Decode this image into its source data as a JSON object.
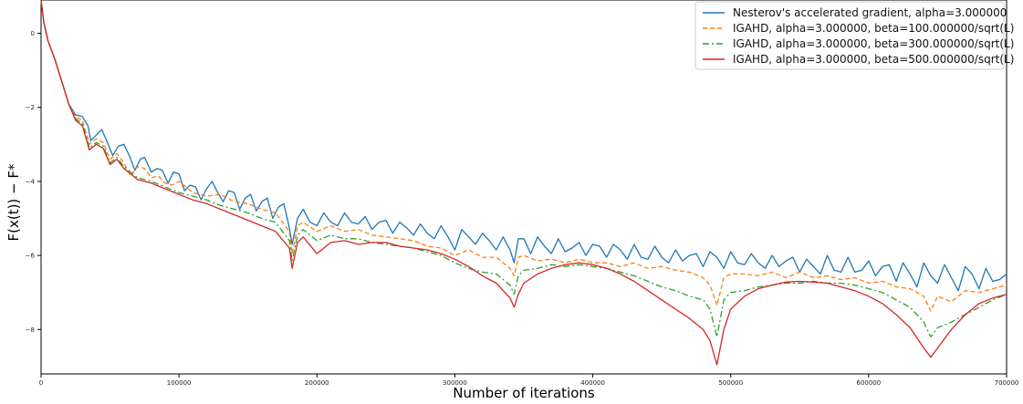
{
  "chart_data": {
    "type": "line",
    "title": "",
    "xlabel": "Number of iterations",
    "ylabel": "F(x(t)) − F*",
    "xlim": [
      0,
      700000
    ],
    "ylim": [
      -9.2,
      0.9
    ],
    "xticks": [
      0,
      100000,
      200000,
      300000,
      400000,
      500000,
      600000,
      700000
    ],
    "xtick_labels": [
      "0",
      "100000",
      "200000",
      "300000",
      "400000",
      "500000",
      "600000",
      "700000"
    ],
    "yticks": [
      0,
      -2,
      -4,
      -6,
      -8
    ],
    "ytick_labels": [
      "0",
      "−2",
      "−4",
      "−6",
      "−8"
    ],
    "grid": false,
    "legend_position": "top-right",
    "series": [
      {
        "name": "Nesterov's accelerated gradient, alpha=3.000000",
        "color": "#1f77b4",
        "style": "solid",
        "x": [
          0,
          2000,
          5000,
          10000,
          15000,
          20000,
          25000,
          30000,
          34000,
          36000,
          40000,
          44000,
          47000,
          52000,
          56000,
          60000,
          64000,
          68000,
          72000,
          75000,
          80000,
          84000,
          88000,
          92000,
          96000,
          100000,
          104000,
          108000,
          112000,
          116000,
          120000,
          124000,
          128000,
          132000,
          136000,
          140000,
          144000,
          148000,
          152000,
          156000,
          160000,
          164000,
          168000,
          172000,
          176000,
          180000,
          182000,
          186000,
          190000,
          195000,
          200000,
          205000,
          210000,
          215000,
          220000,
          225000,
          230000,
          235000,
          240000,
          245000,
          250000,
          255000,
          260000,
          265000,
          270000,
          275000,
          280000,
          285000,
          290000,
          295000,
          300000,
          305000,
          310000,
          315000,
          320000,
          325000,
          330000,
          335000,
          340000,
          343000,
          346000,
          350000,
          355000,
          360000,
          365000,
          370000,
          375000,
          380000,
          385000,
          390000,
          395000,
          400000,
          405000,
          410000,
          415000,
          420000,
          425000,
          430000,
          435000,
          440000,
          445000,
          450000,
          455000,
          460000,
          465000,
          470000,
          475000,
          480000,
          485000,
          490000,
          495000,
          500000,
          505000,
          510000,
          515000,
          520000,
          525000,
          530000,
          535000,
          540000,
          545000,
          550000,
          555000,
          560000,
          565000,
          570000,
          575000,
          580000,
          585000,
          590000,
          595000,
          600000,
          605000,
          610000,
          615000,
          620000,
          625000,
          630000,
          635000,
          640000,
          645000,
          650000,
          655000,
          660000,
          665000,
          670000,
          675000,
          680000,
          685000,
          690000,
          695000,
          700000
        ],
        "y": [
          0.9,
          0.3,
          -0.2,
          -0.7,
          -1.3,
          -1.9,
          -2.2,
          -2.25,
          -2.5,
          -2.9,
          -2.75,
          -2.6,
          -2.85,
          -3.3,
          -3.05,
          -3.0,
          -3.3,
          -3.7,
          -3.4,
          -3.35,
          -3.75,
          -3.65,
          -3.7,
          -4.05,
          -3.75,
          -3.8,
          -4.25,
          -4.1,
          -4.15,
          -4.5,
          -4.2,
          -4.0,
          -4.3,
          -4.55,
          -4.25,
          -4.3,
          -4.75,
          -4.45,
          -4.35,
          -4.8,
          -4.55,
          -4.45,
          -5.0,
          -4.7,
          -4.6,
          -5.25,
          -5.7,
          -5.0,
          -4.75,
          -5.1,
          -5.2,
          -4.85,
          -5.1,
          -5.2,
          -4.85,
          -5.1,
          -5.15,
          -4.95,
          -5.3,
          -5.1,
          -5.05,
          -5.4,
          -5.1,
          -5.25,
          -5.45,
          -5.15,
          -5.4,
          -5.55,
          -5.2,
          -5.5,
          -5.85,
          -5.3,
          -5.5,
          -5.7,
          -5.4,
          -5.6,
          -5.85,
          -5.5,
          -5.85,
          -6.2,
          -5.55,
          -5.55,
          -5.95,
          -5.5,
          -5.75,
          -5.95,
          -5.55,
          -5.9,
          -5.8,
          -5.65,
          -6.0,
          -5.7,
          -5.75,
          -6.05,
          -5.7,
          -5.85,
          -6.1,
          -5.7,
          -6.05,
          -6.1,
          -5.75,
          -6.05,
          -6.2,
          -5.85,
          -6.15,
          -6.0,
          -5.95,
          -6.3,
          -5.9,
          -6.05,
          -6.35,
          -5.9,
          -6.2,
          -6.25,
          -5.95,
          -6.2,
          -6.35,
          -6.0,
          -6.3,
          -6.15,
          -6.05,
          -6.45,
          -6.1,
          -6.3,
          -6.5,
          -6.0,
          -6.4,
          -6.45,
          -6.05,
          -6.45,
          -6.4,
          -6.15,
          -6.55,
          -6.3,
          -6.25,
          -6.7,
          -6.2,
          -6.5,
          -6.85,
          -6.2,
          -6.55,
          -6.75,
          -6.25,
          -6.6,
          -6.95,
          -6.3,
          -6.5,
          -6.9,
          -6.35,
          -6.7,
          -6.65,
          -6.5
        ],
        "note": "oscillating decay"
      },
      {
        "name": "IGAHD, alpha=3.000000, beta=100.000000/sqrt(L)",
        "color": "#ff7f0e",
        "style": "dashed",
        "x": [
          0,
          2000,
          5000,
          10000,
          15000,
          20000,
          25000,
          30000,
          35000,
          40000,
          45000,
          50000,
          55000,
          60000,
          65000,
          70000,
          75000,
          80000,
          85000,
          90000,
          95000,
          100000,
          110000,
          120000,
          130000,
          140000,
          150000,
          160000,
          170000,
          180000,
          182000,
          186000,
          190000,
          200000,
          210000,
          220000,
          230000,
          240000,
          250000,
          260000,
          270000,
          280000,
          290000,
          300000,
          310000,
          320000,
          330000,
          340000,
          343000,
          346000,
          350000,
          360000,
          370000,
          380000,
          390000,
          400000,
          410000,
          420000,
          430000,
          440000,
          450000,
          460000,
          470000,
          480000,
          485000,
          490000,
          495000,
          500000,
          510000,
          520000,
          530000,
          540000,
          550000,
          560000,
          570000,
          580000,
          590000,
          600000,
          610000,
          620000,
          630000,
          640000,
          645000,
          650000,
          660000,
          670000,
          680000,
          690000,
          700000
        ],
        "y": [
          0.9,
          0.3,
          -0.2,
          -0.7,
          -1.3,
          -1.9,
          -2.25,
          -2.35,
          -3.0,
          -2.85,
          -2.95,
          -3.4,
          -3.25,
          -3.5,
          -3.85,
          -3.6,
          -3.65,
          -3.9,
          -3.85,
          -4.05,
          -4.1,
          -4.0,
          -4.3,
          -4.4,
          -4.35,
          -4.55,
          -4.6,
          -4.75,
          -4.85,
          -5.35,
          -5.95,
          -5.2,
          -5.1,
          -5.35,
          -5.2,
          -5.35,
          -5.3,
          -5.45,
          -5.5,
          -5.55,
          -5.6,
          -5.75,
          -5.8,
          -6.0,
          -5.85,
          -6.05,
          -6.05,
          -6.35,
          -6.55,
          -6.05,
          -6.0,
          -6.15,
          -6.1,
          -6.2,
          -6.1,
          -6.2,
          -6.2,
          -6.3,
          -6.2,
          -6.35,
          -6.3,
          -6.4,
          -6.45,
          -6.6,
          -6.8,
          -7.35,
          -6.6,
          -6.5,
          -6.5,
          -6.55,
          -6.45,
          -6.6,
          -6.45,
          -6.6,
          -6.55,
          -6.65,
          -6.6,
          -6.75,
          -6.7,
          -6.85,
          -6.9,
          -7.1,
          -7.5,
          -7.1,
          -7.25,
          -6.95,
          -7.0,
          -6.9,
          -6.8
        ]
      },
      {
        "name": "IGAHD, alpha=3.000000, beta=300.000000/sqrt(L)",
        "color": "#2ca02c",
        "style": "dashdot",
        "x": [
          0,
          2000,
          5000,
          10000,
          15000,
          20000,
          25000,
          30000,
          35000,
          40000,
          45000,
          50000,
          55000,
          60000,
          70000,
          80000,
          90000,
          100000,
          110000,
          120000,
          130000,
          140000,
          150000,
          160000,
          170000,
          180000,
          182000,
          186000,
          190000,
          200000,
          210000,
          220000,
          230000,
          240000,
          250000,
          260000,
          270000,
          280000,
          290000,
          300000,
          310000,
          320000,
          330000,
          340000,
          343000,
          346000,
          350000,
          360000,
          370000,
          380000,
          390000,
          400000,
          410000,
          420000,
          430000,
          440000,
          450000,
          460000,
          470000,
          480000,
          485000,
          490000,
          495000,
          500000,
          510000,
          520000,
          530000,
          540000,
          550000,
          560000,
          570000,
          580000,
          590000,
          600000,
          610000,
          620000,
          630000,
          640000,
          645000,
          650000,
          660000,
          670000,
          680000,
          690000,
          700000
        ],
        "y": [
          0.9,
          0.3,
          -0.2,
          -0.7,
          -1.3,
          -1.9,
          -2.3,
          -2.45,
          -3.1,
          -2.95,
          -3.05,
          -3.5,
          -3.35,
          -3.6,
          -3.9,
          -4.0,
          -4.15,
          -4.3,
          -4.4,
          -4.5,
          -4.65,
          -4.75,
          -4.85,
          -5.0,
          -5.1,
          -5.6,
          -6.15,
          -5.45,
          -5.3,
          -5.6,
          -5.45,
          -5.55,
          -5.55,
          -5.65,
          -5.7,
          -5.75,
          -5.8,
          -5.9,
          -6.0,
          -6.2,
          -6.35,
          -6.45,
          -6.5,
          -6.8,
          -7.05,
          -6.55,
          -6.4,
          -6.35,
          -6.25,
          -6.3,
          -6.25,
          -6.3,
          -6.35,
          -6.45,
          -6.55,
          -6.7,
          -6.85,
          -6.95,
          -7.1,
          -7.2,
          -7.45,
          -8.2,
          -7.2,
          -7.0,
          -6.95,
          -6.85,
          -6.8,
          -6.75,
          -6.75,
          -6.7,
          -6.75,
          -6.75,
          -6.8,
          -6.9,
          -7.0,
          -7.2,
          -7.4,
          -7.8,
          -8.2,
          -7.95,
          -7.8,
          -7.6,
          -7.4,
          -7.2,
          -7.05
        ]
      },
      {
        "name": "IGAHD, alpha=3.000000, beta=500.000000/sqrt(L)",
        "color": "#d62728",
        "style": "solid",
        "x": [
          0,
          2000,
          5000,
          10000,
          15000,
          20000,
          25000,
          30000,
          35000,
          40000,
          45000,
          50000,
          55000,
          60000,
          70000,
          80000,
          90000,
          100000,
          110000,
          120000,
          130000,
          140000,
          150000,
          160000,
          170000,
          180000,
          182000,
          186000,
          190000,
          200000,
          210000,
          220000,
          230000,
          240000,
          250000,
          260000,
          270000,
          280000,
          290000,
          300000,
          310000,
          320000,
          330000,
          340000,
          343000,
          346000,
          350000,
          360000,
          370000,
          380000,
          390000,
          400000,
          410000,
          420000,
          430000,
          440000,
          450000,
          460000,
          470000,
          480000,
          485000,
          490000,
          495000,
          500000,
          510000,
          520000,
          530000,
          540000,
          550000,
          560000,
          570000,
          580000,
          590000,
          600000,
          610000,
          620000,
          630000,
          640000,
          645000,
          650000,
          660000,
          670000,
          680000,
          690000,
          700000
        ],
        "y": [
          0.9,
          0.3,
          -0.2,
          -0.7,
          -1.3,
          -1.9,
          -2.35,
          -2.5,
          -3.15,
          -3.0,
          -3.1,
          -3.55,
          -3.4,
          -3.65,
          -3.95,
          -4.05,
          -4.2,
          -4.35,
          -4.5,
          -4.6,
          -4.75,
          -4.9,
          -5.05,
          -5.2,
          -5.35,
          -5.8,
          -6.35,
          -5.65,
          -5.5,
          -5.95,
          -5.65,
          -5.6,
          -5.7,
          -5.65,
          -5.65,
          -5.75,
          -5.8,
          -5.85,
          -5.95,
          -6.1,
          -6.3,
          -6.55,
          -6.75,
          -7.15,
          -7.4,
          -7.05,
          -6.75,
          -6.5,
          -6.35,
          -6.25,
          -6.2,
          -6.25,
          -6.35,
          -6.5,
          -6.7,
          -6.95,
          -7.2,
          -7.45,
          -7.7,
          -8.0,
          -8.3,
          -8.95,
          -8.0,
          -7.45,
          -7.1,
          -6.9,
          -6.8,
          -6.72,
          -6.7,
          -6.72,
          -6.75,
          -6.85,
          -6.95,
          -7.1,
          -7.3,
          -7.6,
          -7.95,
          -8.5,
          -8.75,
          -8.5,
          -8.0,
          -7.6,
          -7.3,
          -7.15,
          -7.05
        ]
      }
    ]
  }
}
